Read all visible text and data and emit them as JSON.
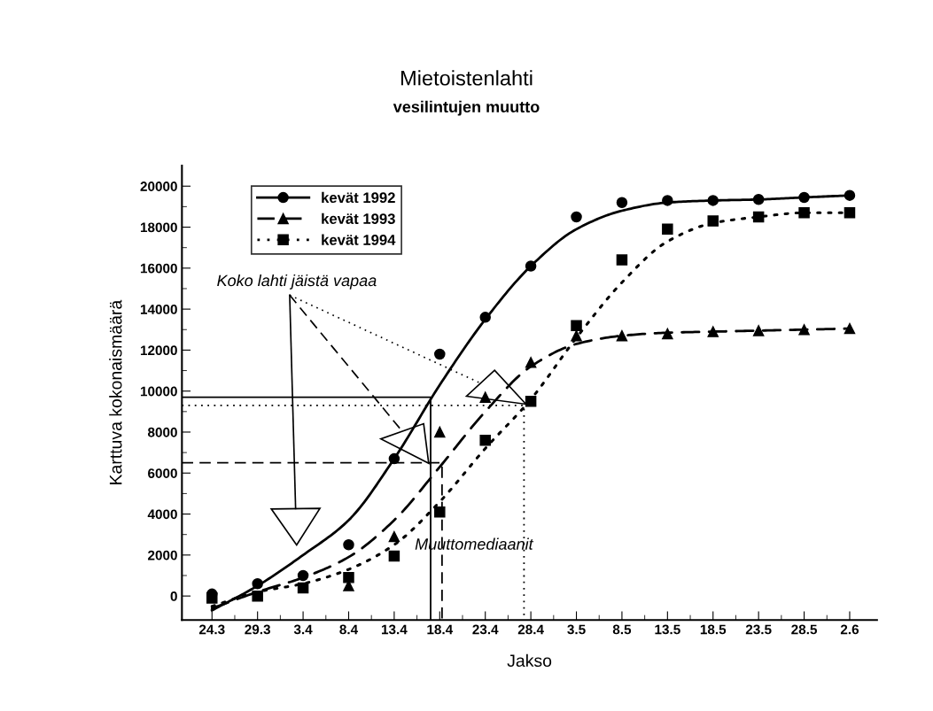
{
  "chart_data": {
    "type": "scatter",
    "title": "Mietoistenlahti",
    "subtitle": "vesilintujen muutto",
    "xlabel": "Jakso",
    "ylabel": "Karttuva kokonaismäärä",
    "categories": [
      "24.3",
      "29.3",
      "3.4",
      "8.4",
      "13.4",
      "18.4",
      "23.4",
      "28.4",
      "3.5",
      "8.5",
      "13.5",
      "18.5",
      "23.5",
      "28.5",
      "2.6"
    ],
    "series": [
      {
        "name": "kevät 1992",
        "color": "#000000",
        "marker": "circle",
        "line_style": "solid",
        "values": [
          100,
          600,
          1000,
          2500,
          6700,
          11800,
          13600,
          16100,
          18500,
          19200,
          19300,
          19300,
          19350,
          19450,
          19550
        ]
      },
      {
        "name": "kevät 1993",
        "color": "#000000",
        "marker": "triangle",
        "line_style": "dashed",
        "values": [
          null,
          null,
          null,
          500,
          2900,
          8000,
          9700,
          11400,
          12700,
          12700,
          12800,
          12900,
          12950,
          13000,
          13050
        ]
      },
      {
        "name": "kevät 1994",
        "color": "#000000",
        "marker": "square",
        "line_style": "dotted",
        "values": [
          -100,
          0,
          400,
          900,
          1950,
          4100,
          7600,
          9500,
          13200,
          16400,
          17900,
          18300,
          18500,
          18700,
          18700
        ]
      },
      {
        "type": "line",
        "color": "#000000",
        "marker": "none",
        "line_style": "solid",
        "values": [
          -700,
          500,
          2000,
          3700,
          6700,
          10300,
          13500,
          16100,
          17900,
          18800,
          19200,
          19300,
          19350,
          19450,
          19550
        ]
      },
      {
        "type": "line",
        "color": "#000000",
        "marker": "none",
        "line_style": "dashed",
        "values": [
          -600,
          200,
          900,
          1900,
          3700,
          6300,
          9000,
          11200,
          12300,
          12700,
          12850,
          12900,
          12950,
          13000,
          13050
        ]
      },
      {
        "type": "line",
        "color": "#000000",
        "marker": "none",
        "line_style": "dotted",
        "values": [
          -500,
          200,
          600,
          1300,
          2500,
          4600,
          7200,
          9600,
          12600,
          15300,
          17300,
          18200,
          18500,
          18700,
          18700
        ]
      }
    ],
    "ref_lines": [
      {
        "axis": "y",
        "value": 9700,
        "line_style": "solid"
      },
      {
        "axis": "y",
        "value": 6500,
        "line_style": "dashed"
      },
      {
        "axis": "y",
        "value": 9300,
        "line_style": "dotted"
      }
    ],
    "annotations": [
      "Koko lahti jäistä vapaa",
      "Muuttomediaanit"
    ],
    "ylim": [
      -1170,
      21000
    ],
    "yticks": [
      0,
      {
        "value": 1000,
        "label": null
      },
      2000,
      {
        "value": 3000,
        "label": null
      },
      4000,
      {
        "value": 5000,
        "label": null
      },
      6000,
      {
        "value": 7000,
        "label": null
      },
      8000,
      {
        "value": 9000,
        "label": null
      },
      10000,
      {
        "value": 11000,
        "label": null
      },
      12000,
      {
        "value": 13000,
        "label": null
      },
      14000,
      {
        "value": 15000,
        "label": null
      },
      16000,
      {
        "value": 17000,
        "label": null
      },
      18000,
      {
        "value": 19000,
        "label": null
      },
      20000
    ],
    "legend": "top left",
    "grid": false
  }
}
